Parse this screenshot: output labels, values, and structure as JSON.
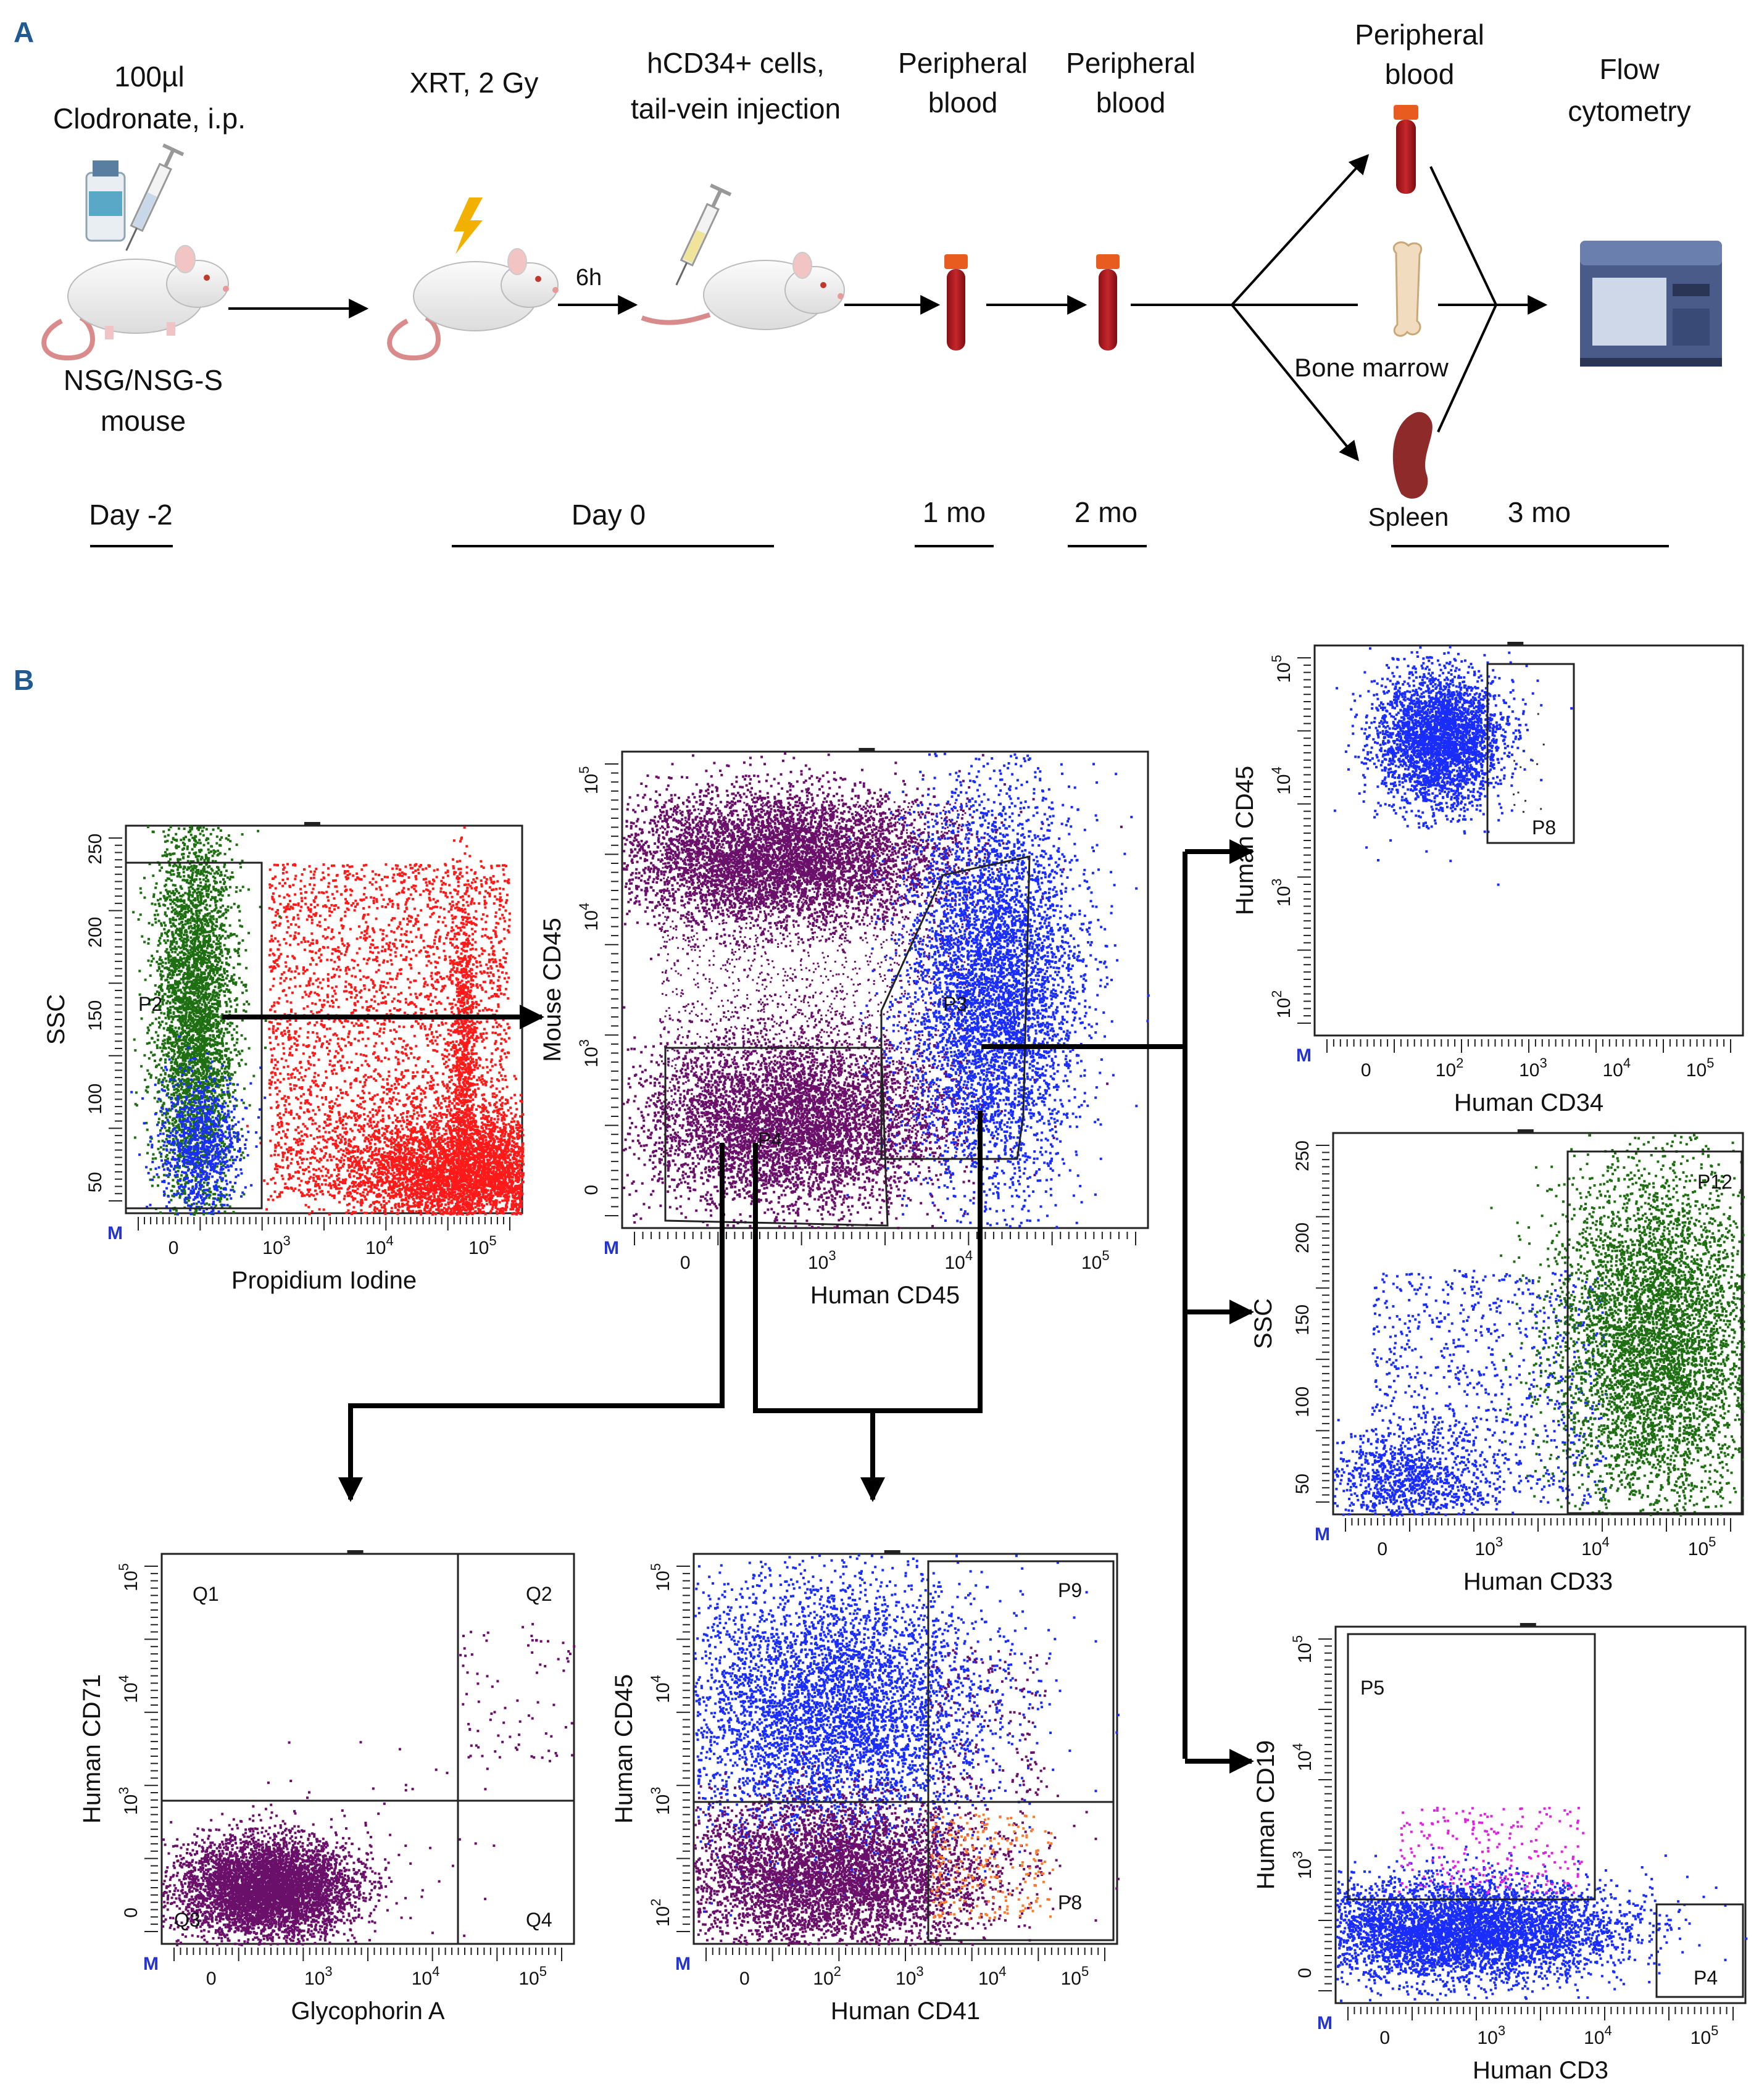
{
  "panels": {
    "a": "A",
    "b": "B"
  },
  "timeline": {
    "steps": [
      {
        "line1": "100µl",
        "line2": "Clodronate, i.p."
      },
      {
        "line1": "XRT, 2 Gy"
      },
      {
        "line1": "hCD34+ cells,",
        "line2": "tail-vein injection"
      },
      {
        "line1": "Peripheral",
        "line2": "blood"
      },
      {
        "line1": "Peripheral",
        "line2": "blood"
      },
      {
        "line1": "Peripheral",
        "line2": "blood"
      },
      {
        "line1": "Flow",
        "line2": "cytometry"
      }
    ],
    "mouse_label": {
      "line1": "NSG/NSG-S",
      "line2": "mouse"
    },
    "interval": "6h",
    "bone_marrow": "Bone marrow",
    "spleen": "Spleen",
    "days": [
      "Day -2",
      "Day 0",
      "1 mo",
      "2 mo",
      "3 mo"
    ]
  },
  "plots": [
    {
      "id": "pi",
      "xlabel": "Propidium Iodine",
      "ylabel": "SSC",
      "xticks": [
        "0",
        "10",
        "10",
        "10"
      ],
      "xexp": [
        "",
        "3",
        "4",
        "5"
      ],
      "yticks": [
        "250",
        "200",
        "150",
        "100",
        "50"
      ],
      "gates": [
        "P2"
      ]
    },
    {
      "id": "hcd45",
      "xlabel": "Human CD45",
      "ylabel": "Mouse CD45",
      "xticks": [
        "0",
        "10",
        "10",
        "10"
      ],
      "xexp": [
        "",
        "3",
        "4",
        "5"
      ],
      "yticks": [
        "10",
        "10",
        "10",
        "0"
      ],
      "yexp": [
        "5",
        "4",
        "3",
        ""
      ],
      "gates": [
        "P3",
        "P4"
      ]
    },
    {
      "id": "cd34",
      "xlabel": "Human CD34",
      "ylabel": "Human CD45",
      "xticks": [
        "0",
        "10",
        "10",
        "10",
        "10"
      ],
      "xexp": [
        "",
        "2",
        "3",
        "4",
        "5"
      ],
      "yticks": [
        "10",
        "10",
        "10",
        "10"
      ],
      "yexp": [
        "5",
        "4",
        "3",
        "2"
      ],
      "gates": [
        "P8"
      ]
    },
    {
      "id": "cd33",
      "xlabel": "Human CD33",
      "ylabel": "SSC",
      "xticks": [
        "0",
        "10",
        "10",
        "10"
      ],
      "xexp": [
        "",
        "3",
        "4",
        "5"
      ],
      "yticks": [
        "250",
        "200",
        "150",
        "100",
        "50"
      ],
      "gates": [
        "P12"
      ]
    },
    {
      "id": "gpa",
      "xlabel": "Glycophorin A",
      "ylabel": "Human CD71",
      "xticks": [
        "0",
        "10",
        "10",
        "10"
      ],
      "xexp": [
        "",
        "3",
        "4",
        "5"
      ],
      "yticks": [
        "10",
        "10",
        "10",
        "0"
      ],
      "yexp": [
        "5",
        "4",
        "3",
        ""
      ],
      "gates": [
        "Q1",
        "Q2",
        "Q3",
        "Q4"
      ]
    },
    {
      "id": "cd41",
      "xlabel": "Human CD41",
      "ylabel": "Human CD45",
      "xticks": [
        "0",
        "10",
        "10",
        "10",
        "10"
      ],
      "xexp": [
        "",
        "2",
        "3",
        "4",
        "5"
      ],
      "yticks": [
        "10",
        "10",
        "10",
        "10"
      ],
      "yexp": [
        "5",
        "4",
        "3",
        "2"
      ],
      "gates": [
        "P9",
        "P8"
      ]
    },
    {
      "id": "cd3",
      "xlabel": "Human CD3",
      "ylabel": "Human CD19",
      "xticks": [
        "0",
        "10",
        "10",
        "10"
      ],
      "xexp": [
        "",
        "3",
        "4",
        "5"
      ],
      "yticks": [
        "10",
        "10",
        "10",
        "0"
      ],
      "yexp": [
        "5",
        "4",
        "3",
        ""
      ],
      "gates": [
        "P5",
        "P4"
      ]
    }
  ],
  "marker_glyph": "M",
  "colors": {
    "purple": "#6a0f6a",
    "blue": "#1a2dff",
    "green": "#1e6e12",
    "red": "#ff1a1a",
    "orange": "#ff7a2a",
    "magenta": "#e023e0",
    "letter": "#1f5a93"
  }
}
